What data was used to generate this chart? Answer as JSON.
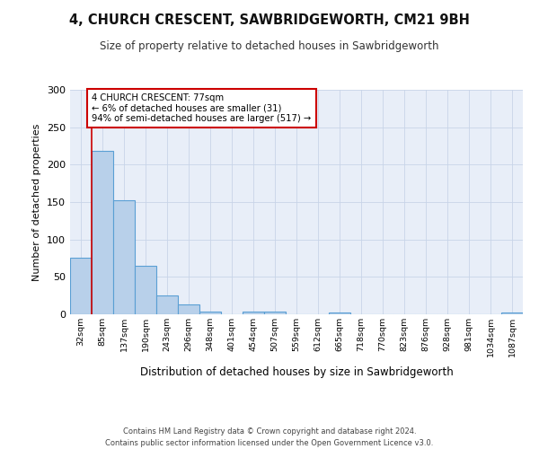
{
  "title1": "4, CHURCH CRESCENT, SAWBRIDGEWORTH, CM21 9BH",
  "title2": "Size of property relative to detached houses in Sawbridgeworth",
  "xlabel": "Distribution of detached houses by size in Sawbridgeworth",
  "ylabel": "Number of detached properties",
  "footer1": "Contains HM Land Registry data © Crown copyright and database right 2024.",
  "footer2": "Contains public sector information licensed under the Open Government Licence v3.0.",
  "categories": [
    "32sqm",
    "85sqm",
    "137sqm",
    "190sqm",
    "243sqm",
    "296sqm",
    "348sqm",
    "401sqm",
    "454sqm",
    "507sqm",
    "559sqm",
    "612sqm",
    "665sqm",
    "718sqm",
    "770sqm",
    "823sqm",
    "876sqm",
    "928sqm",
    "981sqm",
    "1034sqm",
    "1087sqm"
  ],
  "values": [
    76,
    218,
    152,
    65,
    25,
    13,
    4,
    0,
    4,
    4,
    0,
    0,
    3,
    0,
    0,
    0,
    0,
    0,
    0,
    0,
    3
  ],
  "bar_color": "#b8d0ea",
  "bar_edge_color": "#5a9fd4",
  "bg_color": "#e8eef8",
  "annotation_line1": "4 CHURCH CRESCENT: 77sqm",
  "annotation_line2": "← 6% of detached houses are smaller (31)",
  "annotation_line3": "94% of semi-detached houses are larger (517) →",
  "annotation_box_color": "#ffffff",
  "annotation_box_edge": "#cc0000",
  "vline_x": 0.5,
  "ylim": [
    0,
    300
  ],
  "yticks": [
    0,
    50,
    100,
    150,
    200,
    250,
    300
  ]
}
